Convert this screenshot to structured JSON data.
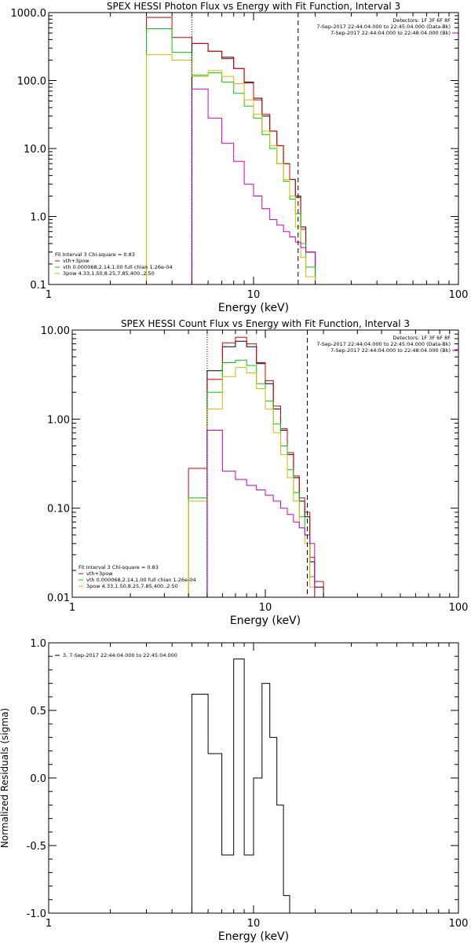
{
  "chart_data": [
    {
      "type": "line",
      "title": "SPEX HESSI Photon Flux vs Energy with Fit Function, Interval 3",
      "xlabel": "Energy (keV)",
      "ylabel": "",
      "xscale": "log",
      "yscale": "log",
      "xlim": [
        1,
        100
      ],
      "ylim": [
        0.1,
        1000
      ],
      "xticks": [
        {
          "v": 1,
          "label": "1"
        },
        {
          "v": 10,
          "label": "10"
        },
        {
          "v": 100,
          "label": "100"
        }
      ],
      "yticks": [
        {
          "v": 0.1,
          "label": "0.1"
        },
        {
          "v": 1,
          "label": "1.0"
        },
        {
          "v": 10,
          "label": "10.0"
        },
        {
          "v": 100,
          "label": "100.0"
        },
        {
          "v": 1000,
          "label": "1000.0"
        }
      ],
      "edges": [
        3.0,
        4.0,
        5.0,
        6.0,
        7.0,
        8.0,
        9.0,
        10.0,
        11.0,
        12.0,
        13.0,
        14.0,
        15.0,
        16.0,
        17.0,
        18.0,
        20.0
      ],
      "vlines": [
        {
          "x": 5.0,
          "style": "dotted"
        },
        {
          "x": 16.5,
          "style": "dashed"
        }
      ],
      "info_right": [
        "Detectors: 1F 3F 6F 8F",
        "7-Sep-2017 22:44:04.000 to 22:45:04.000 (Data-Bk)",
        "7-Sep-2017 22:44:04.000 to 22:48:04.000 (Bk)"
      ],
      "info_right_color": "#cc00cc",
      "legend_lines": [
        {
          "text": "Fit Interval 3   Chi-square = 0.83",
          "color": ""
        },
        {
          "text": "vth+3pow",
          "color": "#d40000"
        },
        {
          "text": "vth 0.000068,2.14,1.00   full chian 1.26e-04",
          "color": "#00cc00"
        },
        {
          "text": "3pow 4.33,1.50,8.25,7.85,400.,2.50",
          "color": "#d6b800"
        }
      ],
      "series": [
        {
          "color": "#000000",
          "values": [
            null,
            null,
            350,
            270,
            220,
            150,
            95,
            55,
            30,
            18,
            11,
            6.0,
            3.5,
            2.0,
            0.7,
            0.3,
            0.12
          ]
        },
        {
          "color": "#d40000",
          "values": [
            850,
            430,
            350,
            270,
            210,
            150,
            92,
            52,
            32,
            18,
            11,
            6.0,
            3.5,
            1.9,
            0.65,
            0.3,
            0.12
          ]
        },
        {
          "color": "#00cc00",
          "values": [
            580,
            260,
            120,
            130,
            95,
            65,
            42,
            28,
            16,
            10,
            6.0,
            3.3,
            1.8,
            1.1,
            0.4,
            0.18,
            null
          ]
        },
        {
          "color": "#d6b800",
          "values": [
            240,
            200,
            115,
            140,
            115,
            90,
            52,
            32,
            18,
            11,
            6.0,
            3.5,
            2.0,
            0.7,
            0.25,
            0.13,
            null
          ]
        },
        {
          "color": "#cc00cc",
          "values": [
            null,
            null,
            75,
            28,
            12,
            6.5,
            3.0,
            2.0,
            1.3,
            0.9,
            0.75,
            0.6,
            0.5,
            0.42,
            0.35,
            0.3,
            0.2
          ]
        }
      ]
    },
    {
      "type": "line",
      "title": "SPEX HESSI Count Flux vs Energy with Fit Function, Interval 3",
      "xlabel": "Energy (keV)",
      "ylabel": "",
      "xscale": "log",
      "yscale": "log",
      "xlim": [
        1,
        100
      ],
      "ylim": [
        0.01,
        10
      ],
      "xticks": [
        {
          "v": 1,
          "label": "1"
        },
        {
          "v": 10,
          "label": "10"
        },
        {
          "v": 100,
          "label": "100"
        }
      ],
      "yticks": [
        {
          "v": 0.01,
          "label": "0.01"
        },
        {
          "v": 0.1,
          "label": "0.10"
        },
        {
          "v": 1,
          "label": "1.00"
        },
        {
          "v": 10,
          "label": "10.00"
        }
      ],
      "edges": [
        3.0,
        4.0,
        5.0,
        6.0,
        7.0,
        8.0,
        9.0,
        10.0,
        11.0,
        12.0,
        13.0,
        14.0,
        15.0,
        16.0,
        17.0,
        18.0,
        20.0
      ],
      "vlines": [
        {
          "x": 5.0,
          "style": "dotted"
        },
        {
          "x": 16.5,
          "style": "dashed"
        }
      ],
      "info_right": [
        "Detectors: 1F 3F 6F 8F",
        "7-Sep-2017 22:44:04.000 to 22:45:04.000 (Data-Bk)",
        "7-Sep-2017 22:44:04.000 to 22:48:04.000 (Bk)"
      ],
      "info_right_color": "#cc00cc",
      "legend_lines": [
        {
          "text": "Fit Interval 3   Chi-square = 0.83",
          "color": ""
        },
        {
          "text": "vth+3pow",
          "color": "#d40000"
        },
        {
          "text": "vth 0.000068,2.14,1.00   full chian 1.26e-04",
          "color": "#00cc00"
        },
        {
          "text": "3pow 4.33,1.50,8.25,7.85,400.,2.50",
          "color": "#d6b800"
        }
      ],
      "series": [
        {
          "color": "#000000",
          "values": [
            null,
            null,
            3.5,
            6.5,
            7.5,
            6.5,
            4.2,
            2.5,
            1.3,
            0.75,
            0.4,
            0.22,
            0.12,
            0.08,
            0.025,
            0.013,
            null
          ]
        },
        {
          "color": "#d40000",
          "values": [
            null,
            0.28,
            2.8,
            7.2,
            8.3,
            7.0,
            4.3,
            2.7,
            1.4,
            0.78,
            0.42,
            0.23,
            0.13,
            0.09,
            0.028,
            0.015,
            null
          ]
        },
        {
          "color": "#00cc00",
          "values": [
            null,
            0.13,
            2.0,
            4.3,
            4.6,
            4.0,
            2.5,
            1.6,
            0.88,
            0.5,
            0.27,
            0.15,
            0.08,
            0.05,
            0.017,
            0.01,
            null
          ]
        },
        {
          "color": "#d6b800",
          "values": [
            null,
            0.12,
            1.3,
            3.0,
            3.8,
            3.3,
            2.2,
            1.3,
            0.7,
            0.4,
            0.22,
            0.12,
            0.06,
            0.04,
            0.013,
            null,
            null
          ]
        },
        {
          "color": "#cc00cc",
          "values": [
            null,
            null,
            0.75,
            0.26,
            0.21,
            0.18,
            0.16,
            0.14,
            0.12,
            0.1,
            0.085,
            0.07,
            0.06,
            0.05,
            0.04,
            null,
            null
          ]
        }
      ]
    },
    {
      "type": "line",
      "title": "",
      "xlabel": "Energy (keV)",
      "ylabel": "Normalized Residuals (sigma)",
      "xscale": "log",
      "yscale": "linear",
      "xlim": [
        1,
        100
      ],
      "ylim": [
        -1.0,
        1.0
      ],
      "xticks": [
        {
          "v": 1,
          "label": "1"
        },
        {
          "v": 10,
          "label": "10"
        },
        {
          "v": 100,
          "label": "100"
        }
      ],
      "yticks": [
        {
          "v": -1.0,
          "label": "-1.0"
        },
        {
          "v": -0.5,
          "label": "-0.5"
        },
        {
          "v": 0.0,
          "label": "0.0"
        },
        {
          "v": 0.5,
          "label": "0.5"
        },
        {
          "v": 1.0,
          "label": "1.0"
        }
      ],
      "edges": [
        5.0,
        6.0,
        7.0,
        8.0,
        9.0,
        10.0,
        11.0,
        12.0,
        13.0,
        14.0,
        15.0,
        16.0
      ],
      "legend_lines": [
        {
          "text": "3.  7-Sep-2017 22:44:04.000 to 22:45:04.000",
          "color": ""
        }
      ],
      "series": [
        {
          "color": "#000000",
          "values": [
            0.62,
            0.18,
            -0.57,
            0.88,
            -0.57,
            0.0,
            0.7,
            0.3,
            -0.2,
            -0.87,
            -1.0
          ]
        }
      ]
    }
  ]
}
